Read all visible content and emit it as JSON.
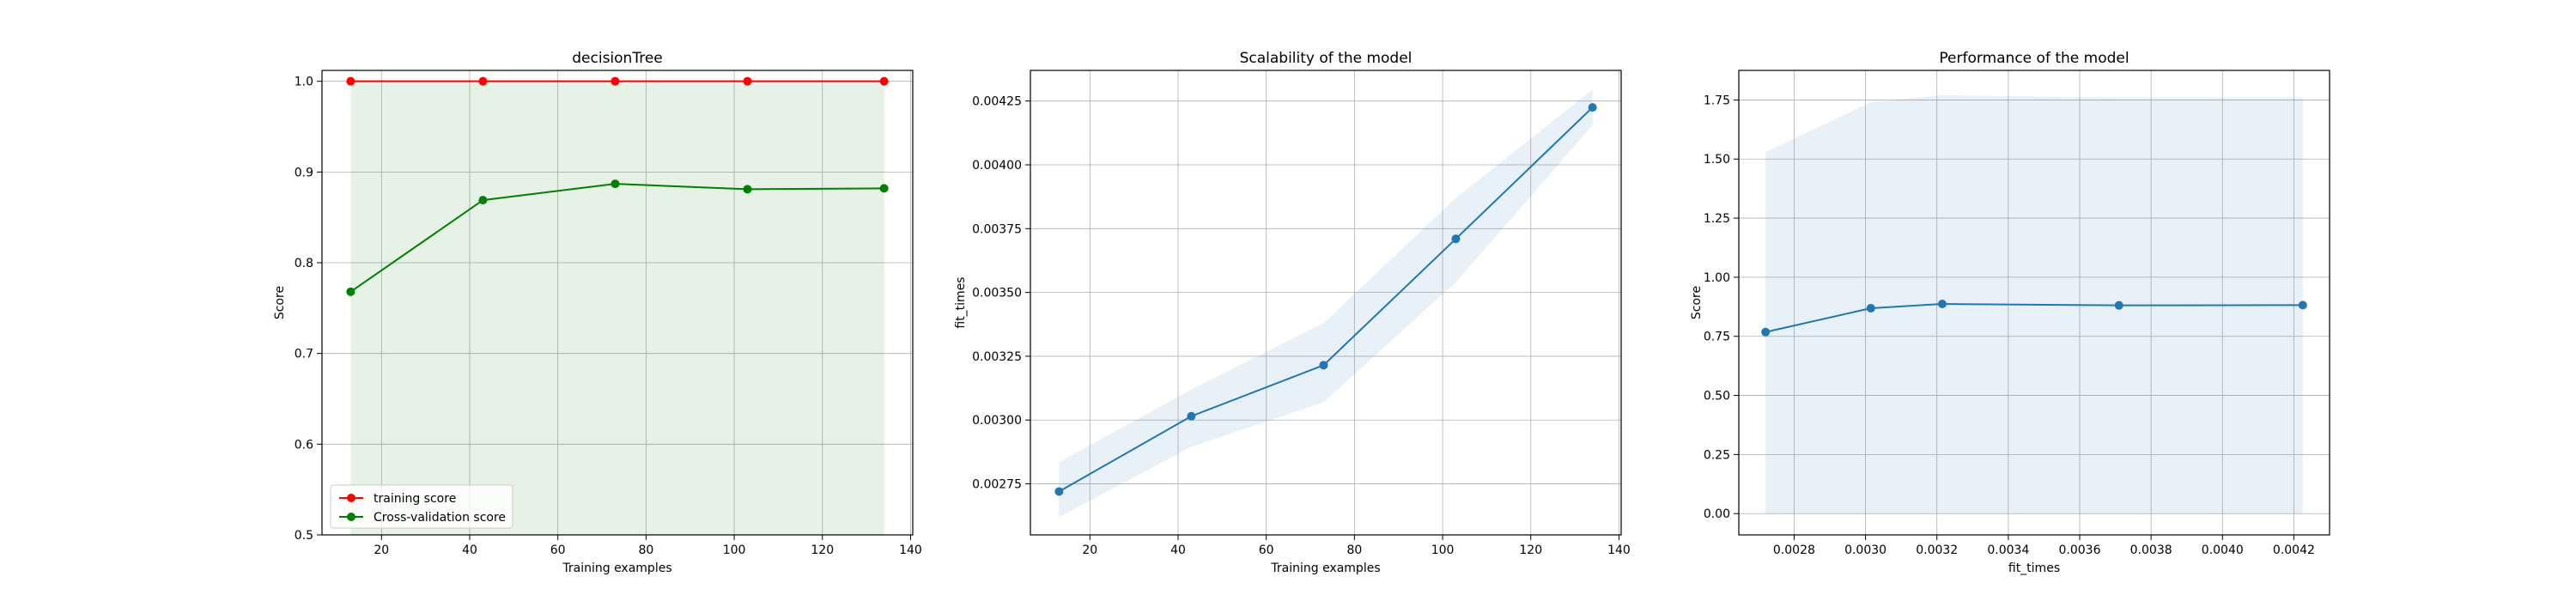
{
  "chart_data": [
    {
      "type": "line",
      "title": "decisionTree",
      "xlabel": "Training examples",
      "ylabel": "Score",
      "x": [
        13,
        43,
        73,
        103,
        134
      ],
      "xlim": [
        6.5,
        140.5
      ],
      "ylim": [
        0.5,
        1.012
      ],
      "xticks": [
        20,
        40,
        60,
        80,
        100,
        120,
        140
      ],
      "yticks": [
        0.5,
        0.6,
        0.7,
        0.8,
        0.9,
        1.0
      ],
      "ytick_labels": [
        "0.5",
        "0.6",
        "0.7",
        "0.8",
        "0.9",
        "1.0"
      ],
      "grid": true,
      "legend": "lower left",
      "series": [
        {
          "name": "training score",
          "color": "#ff0000",
          "values": [
            1.0,
            1.0,
            1.0,
            1.0,
            1.0
          ],
          "band": [
            [
              1.0,
              1.0
            ],
            [
              1.0,
              1.0
            ],
            [
              1.0,
              1.0
            ],
            [
              1.0,
              1.0
            ],
            [
              1.0,
              1.0
            ]
          ]
        },
        {
          "name": "Cross-validation score",
          "color": "#008000",
          "values": [
            0.768,
            0.869,
            0.887,
            0.881,
            0.882
          ],
          "band_lower": 0.5,
          "band_upper": 1.0
        }
      ]
    },
    {
      "type": "line",
      "title": "Scalability of the model",
      "xlabel": "Training examples",
      "ylabel": "fit_times",
      "x": [
        13,
        43,
        73,
        103,
        134
      ],
      "xlim": [
        6.5,
        140.5
      ],
      "ylim": [
        0.00255,
        0.00437
      ],
      "xticks": [
        20,
        40,
        60,
        80,
        100,
        120,
        140
      ],
      "yticks": [
        0.00275,
        0.003,
        0.00325,
        0.0035,
        0.00375,
        0.004,
        0.00425
      ],
      "ytick_labels": [
        "0.00275",
        "0.00300",
        "0.00325",
        "0.00350",
        "0.00375",
        "0.00400",
        "0.00425"
      ],
      "grid": true,
      "series": [
        {
          "color": "#1f77b4",
          "values": [
            0.00272,
            0.003015,
            0.003215,
            0.00371,
            0.004225
          ],
          "band_upper": [
            0.002835,
            0.00312,
            0.00338,
            0.00387,
            0.004295
          ],
          "band_lower": [
            0.00262,
            0.002895,
            0.00307,
            0.00354,
            0.004155
          ]
        }
      ]
    },
    {
      "type": "line",
      "title": "Performance of the model",
      "xlabel": "fit_times",
      "ylabel": "Score",
      "x": [
        0.00272,
        0.003015,
        0.003215,
        0.00371,
        0.004225
      ],
      "xlim": [
        0.002645,
        0.0043
      ],
      "ylim": [
        -0.09,
        1.875
      ],
      "xticks": [
        0.0028,
        0.003,
        0.0032,
        0.0034,
        0.0036,
        0.0038,
        0.004,
        0.0042
      ],
      "xtick_labels": [
        "0.0028",
        "0.0030",
        "0.0032",
        "0.0034",
        "0.0036",
        "0.0038",
        "0.0040",
        "0.0042"
      ],
      "yticks": [
        0,
        0.25,
        0.5,
        0.75,
        1.0,
        1.25,
        1.5,
        1.75
      ],
      "ytick_labels": [
        "0.00",
        "0.25",
        "0.50",
        "0.75",
        "1.00",
        "1.25",
        "1.50",
        "1.75"
      ],
      "grid": true,
      "series": [
        {
          "color": "#1f77b4",
          "values": [
            0.768,
            0.869,
            0.887,
            0.881,
            0.882
          ],
          "band_upper": [
            1.53,
            1.74,
            1.77,
            1.76,
            1.76
          ],
          "band_lower": [
            0.0,
            0.0,
            0.0,
            0.0,
            0.0
          ]
        }
      ]
    }
  ]
}
